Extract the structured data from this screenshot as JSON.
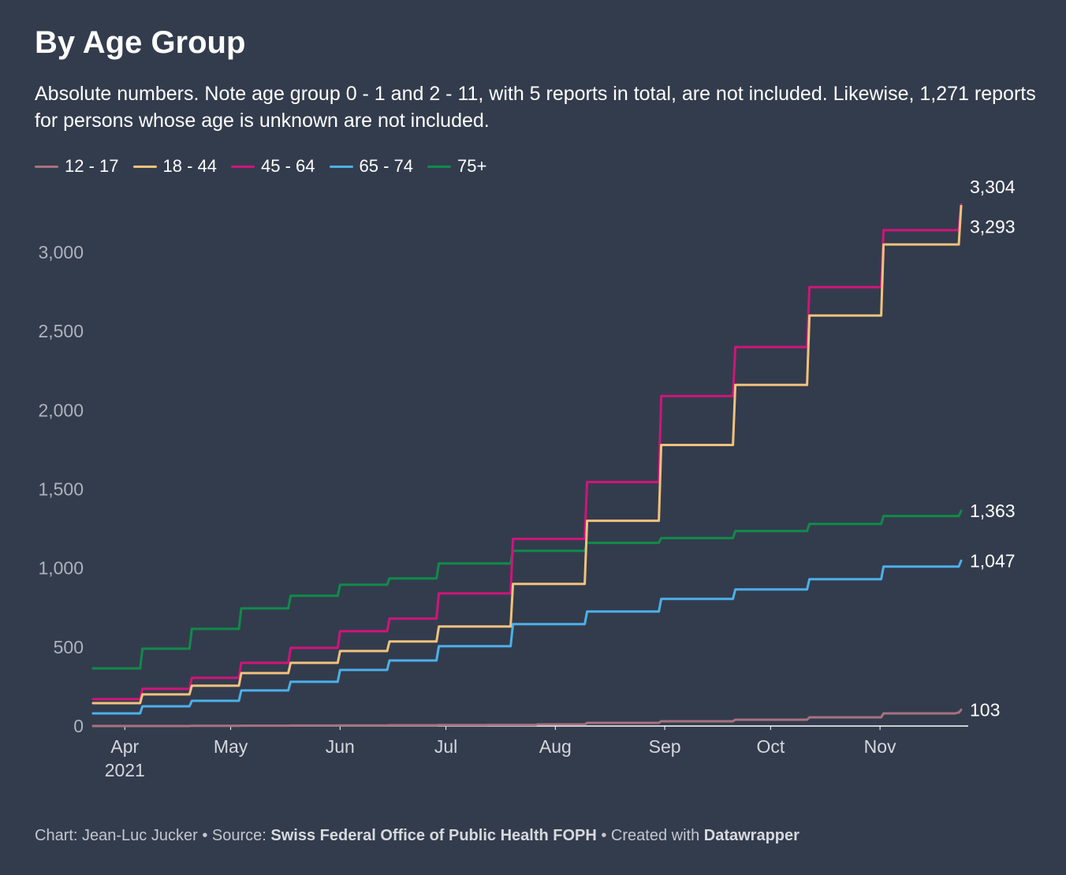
{
  "title": "By Age Group",
  "subtitle": "Absolute numbers. Note age group 0 - 1 and 2 - 11, with 5 reports in total, are not included. Likewise, 1,271 reports for persons whose age is unknown are not included.",
  "footer": {
    "chart_prefix": "Chart: Jean-Luc Jucker",
    "sep1": " • Source: ",
    "source": "Swiss Federal Office of Public Health FOPH",
    "sep2": " • Created with ",
    "tool": "Datawrapper"
  },
  "colors": {
    "background": "#333c4d",
    "12 - 17": "#a7727f",
    "18 - 44": "#f1c27d",
    "45 - 64": "#d0147a",
    "65 - 74": "#4cb0ea",
    "75+": "#118a4a"
  },
  "chart_data": {
    "type": "line",
    "title": "By Age Group",
    "xlabel": "",
    "ylabel": "",
    "ylim": [
      0,
      3300
    ],
    "yticks": [
      0,
      500,
      1000,
      1500,
      2000,
      2500,
      3000
    ],
    "ytick_labels": [
      "0",
      "500",
      "1,000",
      "1,500",
      "2,000",
      "2,500",
      "3,000"
    ],
    "xlim": [
      "2021-03-23",
      "2021-11-26"
    ],
    "xticks": [
      {
        "date": "2021-04-01",
        "label": "Apr",
        "sublabel": "2021"
      },
      {
        "date": "2021-05-01",
        "label": "May",
        "sublabel": ""
      },
      {
        "date": "2021-06-01",
        "label": "Jun",
        "sublabel": ""
      },
      {
        "date": "2021-07-01",
        "label": "Jul",
        "sublabel": ""
      },
      {
        "date": "2021-08-01",
        "label": "Aug",
        "sublabel": ""
      },
      {
        "date": "2021-09-01",
        "label": "Sep",
        "sublabel": ""
      },
      {
        "date": "2021-10-01",
        "label": "Oct",
        "sublabel": ""
      },
      {
        "date": "2021-11-01",
        "label": "Nov",
        "sublabel": ""
      }
    ],
    "grid": "horizontal-none",
    "legend": "top-left",
    "line_shape": "step",
    "series": [
      {
        "name": "12 - 17",
        "end_label": "103",
        "points": [
          [
            "2021-03-23",
            0
          ],
          [
            "2021-04-06",
            0
          ],
          [
            "2021-04-20",
            1
          ],
          [
            "2021-05-04",
            2
          ],
          [
            "2021-05-18",
            3
          ],
          [
            "2021-06-01",
            4
          ],
          [
            "2021-06-15",
            5
          ],
          [
            "2021-06-29",
            6
          ],
          [
            "2021-07-13",
            7
          ],
          [
            "2021-07-27",
            10
          ],
          [
            "2021-08-10",
            20
          ],
          [
            "2021-08-31",
            30
          ],
          [
            "2021-09-21",
            40
          ],
          [
            "2021-10-12",
            55
          ],
          [
            "2021-11-02",
            80
          ],
          [
            "2021-11-23",
            85
          ],
          [
            "2021-11-24",
            103
          ]
        ]
      },
      {
        "name": "18 - 44",
        "end_label": "3,293",
        "points": [
          [
            "2021-03-23",
            145
          ],
          [
            "2021-04-06",
            200
          ],
          [
            "2021-04-20",
            255
          ],
          [
            "2021-05-04",
            335
          ],
          [
            "2021-05-18",
            400
          ],
          [
            "2021-06-01",
            475
          ],
          [
            "2021-06-15",
            535
          ],
          [
            "2021-06-29",
            630
          ],
          [
            "2021-07-20",
            900
          ],
          [
            "2021-08-10",
            1300
          ],
          [
            "2021-08-31",
            1780
          ],
          [
            "2021-09-21",
            2160
          ],
          [
            "2021-10-12",
            2600
          ],
          [
            "2021-11-02",
            3050
          ],
          [
            "2021-11-24",
            3293
          ]
        ]
      },
      {
        "name": "45 - 64",
        "end_label": "3,304",
        "points": [
          [
            "2021-03-23",
            170
          ],
          [
            "2021-04-06",
            235
          ],
          [
            "2021-04-20",
            305
          ],
          [
            "2021-05-04",
            400
          ],
          [
            "2021-05-18",
            495
          ],
          [
            "2021-06-01",
            600
          ],
          [
            "2021-06-15",
            680
          ],
          [
            "2021-06-29",
            840
          ],
          [
            "2021-07-20",
            1185
          ],
          [
            "2021-08-10",
            1545
          ],
          [
            "2021-08-31",
            2090
          ],
          [
            "2021-09-21",
            2400
          ],
          [
            "2021-10-12",
            2780
          ],
          [
            "2021-11-02",
            3140
          ],
          [
            "2021-11-24",
            3304
          ]
        ]
      },
      {
        "name": "65 - 74",
        "end_label": "1,047",
        "points": [
          [
            "2021-03-23",
            80
          ],
          [
            "2021-04-06",
            125
          ],
          [
            "2021-04-20",
            160
          ],
          [
            "2021-05-04",
            225
          ],
          [
            "2021-05-18",
            280
          ],
          [
            "2021-06-01",
            355
          ],
          [
            "2021-06-15",
            415
          ],
          [
            "2021-06-29",
            505
          ],
          [
            "2021-07-20",
            645
          ],
          [
            "2021-08-10",
            725
          ],
          [
            "2021-08-31",
            805
          ],
          [
            "2021-09-21",
            865
          ],
          [
            "2021-10-12",
            930
          ],
          [
            "2021-11-02",
            1010
          ],
          [
            "2021-11-24",
            1047
          ]
        ]
      },
      {
        "name": "75+",
        "end_label": "1,363",
        "points": [
          [
            "2021-03-23",
            365
          ],
          [
            "2021-04-06",
            490
          ],
          [
            "2021-04-20",
            615
          ],
          [
            "2021-05-04",
            745
          ],
          [
            "2021-05-18",
            825
          ],
          [
            "2021-06-01",
            895
          ],
          [
            "2021-06-15",
            935
          ],
          [
            "2021-06-29",
            1030
          ],
          [
            "2021-07-20",
            1110
          ],
          [
            "2021-08-10",
            1160
          ],
          [
            "2021-08-31",
            1190
          ],
          [
            "2021-09-21",
            1235
          ],
          [
            "2021-10-12",
            1280
          ],
          [
            "2021-11-02",
            1330
          ],
          [
            "2021-11-24",
            1363
          ]
        ]
      }
    ]
  }
}
